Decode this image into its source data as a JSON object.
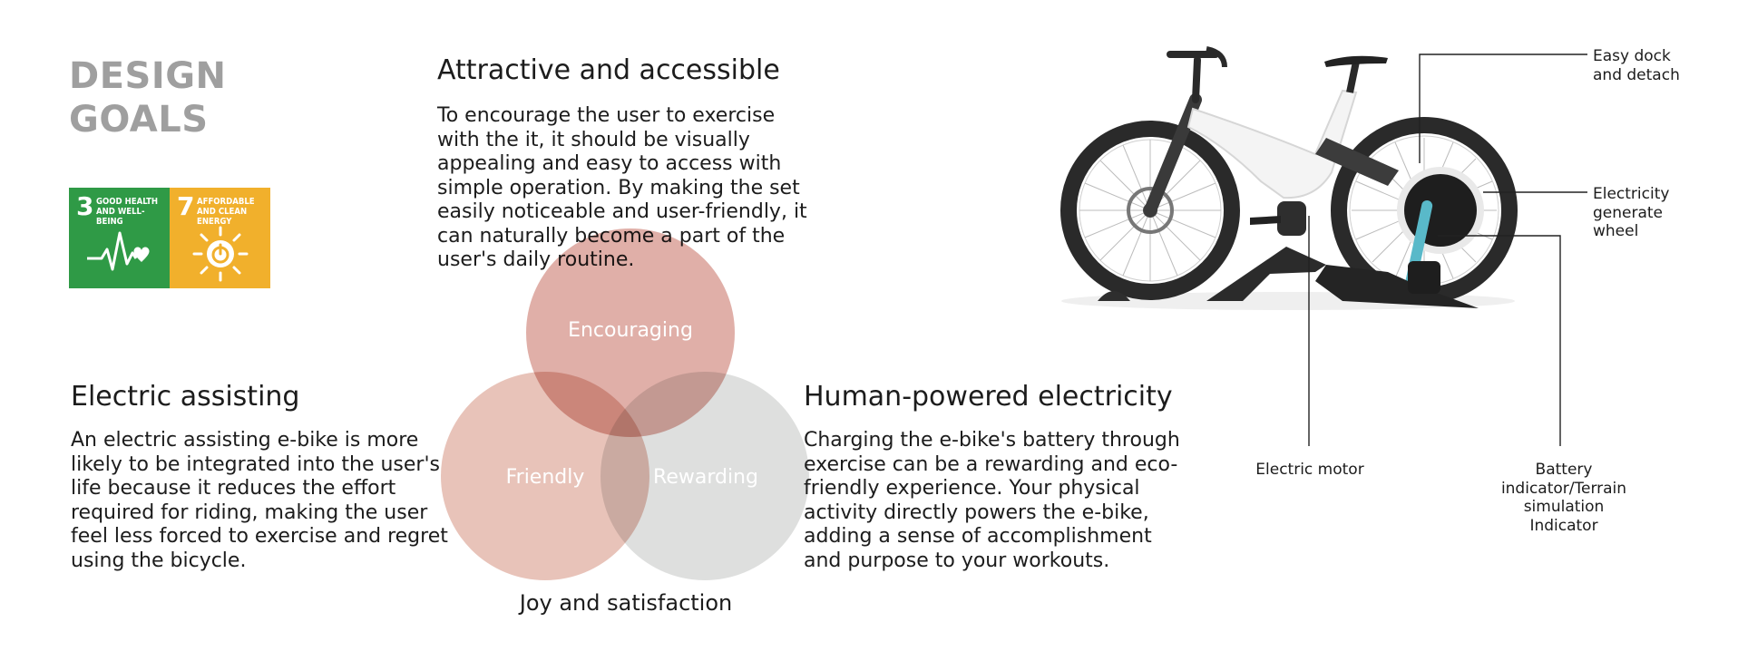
{
  "title": {
    "line1": "DESIGN",
    "line2": "GOALS"
  },
  "sdg": [
    {
      "number": "3",
      "text": "GOOD HEALTH AND WELL-BEING",
      "color": "#2f9a46",
      "icon": "heartbeat-icon"
    },
    {
      "number": "7",
      "text": "AFFORDABLE AND CLEAN ENERGY",
      "color": "#f1b02c",
      "icon": "sun-power-icon"
    }
  ],
  "sections": {
    "attractive": {
      "heading": "Attractive and accessible",
      "lines": [
        "To encourage the user to exercise",
        "with the it, it should be visually",
        "appealing and easy to access with",
        "simple operation. By making the set",
        "easily noticeable and user-friendly, it",
        "can naturally become a part of the",
        "user's daily routine."
      ]
    },
    "electric": {
      "heading": "Electric assisting",
      "lines": [
        "An electric assisting e-bike is more",
        "likely to be integrated into the user's",
        "life because it reduces the effort",
        "required for riding, making the user",
        "feel less forced to exercise and regret",
        "using the bicycle."
      ]
    },
    "human": {
      "heading": "Human-powered electricity",
      "lines": [
        "Charging the e-bike's battery through",
        "exercise can be a rewarding and eco-",
        "friendly experience. Your physical",
        "activity directly powers the e-bike,",
        "adding a sense of accomplishment",
        "and purpose to your workouts."
      ]
    }
  },
  "venn": {
    "top": "Encouraging",
    "left": "Friendly",
    "right": "Rewarding",
    "caption": "Joy and satisfaction",
    "colors": {
      "top": "#d99e95",
      "left": "#e6bcb1",
      "right": "#d9dad9"
    }
  },
  "callouts": {
    "easy_dock": [
      "Easy dock",
      "and detach"
    ],
    "electricity": [
      "Electricity",
      "generate",
      "wheel"
    ],
    "motor": "Electric motor",
    "battery": [
      "Battery",
      "indicator/Terrain",
      "simulation",
      "Indicator"
    ]
  }
}
